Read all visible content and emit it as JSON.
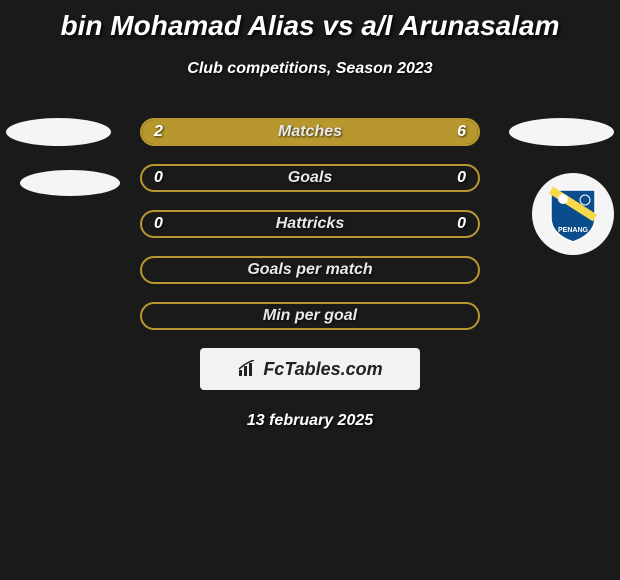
{
  "title": "bin Mohamad Alias vs a/l Arunasalam",
  "subtitle": "Club competitions, Season 2023",
  "colors": {
    "background": "#1a1a1a",
    "bar_border": "#b8972e",
    "bar_fill": "#b8972e",
    "text": "#ffffff",
    "label": "#e8e8e8"
  },
  "bars": [
    {
      "label": "Matches",
      "left_val": "2",
      "right_val": "6",
      "left_fill_pct": 25,
      "right_fill_pct": 75
    },
    {
      "label": "Goals",
      "left_val": "0",
      "right_val": "0",
      "left_fill_pct": 0,
      "right_fill_pct": 0
    },
    {
      "label": "Hattricks",
      "left_val": "0",
      "right_val": "0",
      "left_fill_pct": 0,
      "right_fill_pct": 0
    },
    {
      "label": "Goals per match",
      "left_val": "",
      "right_val": "",
      "left_fill_pct": 0,
      "right_fill_pct": 0
    },
    {
      "label": "Min per goal",
      "left_val": "",
      "right_val": "",
      "left_fill_pct": 0,
      "right_fill_pct": 0
    }
  ],
  "logo": {
    "text": "FcTables.com"
  },
  "date": "13 february 2025",
  "club_badge": {
    "bg": "#0a4d8c",
    "stripe": "#f7d94c",
    "text": "PENANG"
  }
}
